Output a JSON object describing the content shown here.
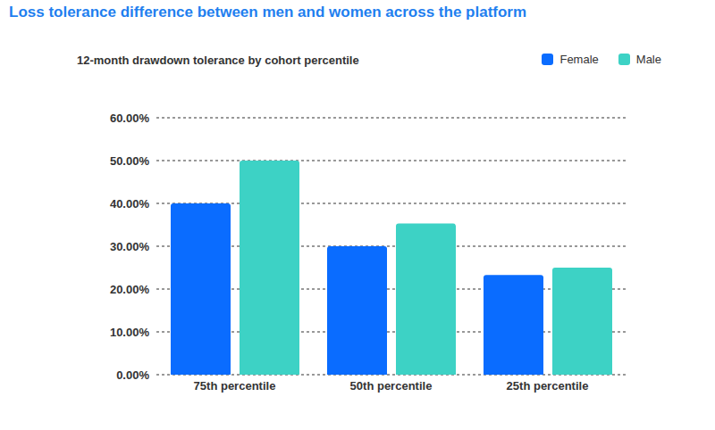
{
  "chart_data": {
    "type": "bar",
    "title": "Loss tolerance difference between men and women across the platform",
    "subtitle": "12-month drawdown tolerance by cohort percentile",
    "categories": [
      "75th percentile",
      "50th percentile",
      "25th percentile"
    ],
    "series": [
      {
        "name": "Female",
        "color": "#0a6cff",
        "values": [
          40,
          30,
          23.3
        ]
      },
      {
        "name": "Male",
        "color": "#3dd2c5",
        "values": [
          50,
          35.3,
          25
        ]
      }
    ],
    "ylim": [
      0,
      60
    ],
    "yticks": [
      {
        "value": 0,
        "label": "0.00%"
      },
      {
        "value": 10,
        "label": "10.00%"
      },
      {
        "value": 20,
        "label": "20.00%"
      },
      {
        "value": 30,
        "label": "30.00%"
      },
      {
        "value": 40,
        "label": "40.00%"
      },
      {
        "value": 50,
        "label": "50.00%"
      },
      {
        "value": 60,
        "label": "60.00%"
      }
    ],
    "grid": true,
    "legend": "top-right"
  }
}
